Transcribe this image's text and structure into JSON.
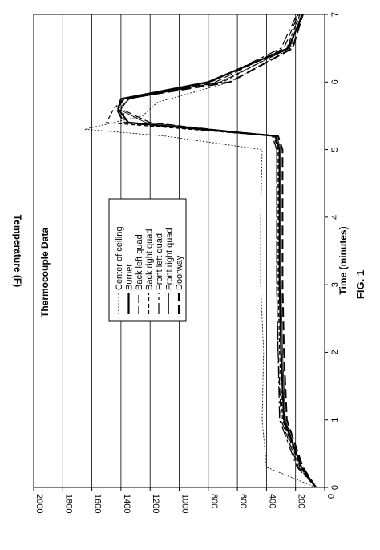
{
  "chart_data": {
    "type": "line",
    "title": "Thermocouple Data",
    "xlabel": "Time (minutes)",
    "ylabel": "Temperature (F)",
    "figure_label": "FIG. 1",
    "xlim": [
      0,
      7
    ],
    "ylim": [
      0,
      2000
    ],
    "x_ticks": [
      "0",
      "1",
      "2",
      "3",
      "4",
      "5",
      "6",
      "7"
    ],
    "y_ticks": [
      "0",
      "200",
      "400",
      "600",
      "800",
      "1000",
      "1200",
      "1400",
      "1600",
      "1800",
      "2000"
    ],
    "grid": true,
    "orientation": "rotated-90-ccw",
    "legend_placement": "center",
    "series": [
      {
        "name": "Center of ceiling",
        "dash": "2,2",
        "width": 0.8,
        "x": [
          0,
          0.3,
          1,
          2,
          3,
          4,
          5.0,
          5.2,
          5.3,
          5.5,
          5.7,
          6,
          6.5,
          7
        ],
        "y": [
          60,
          400,
          430,
          420,
          440,
          440,
          430,
          1100,
          1650,
          1250,
          1150,
          650,
          230,
          170
        ]
      },
      {
        "name": "Burner",
        "dash": "",
        "width": 2.2,
        "x": [
          0,
          0.3,
          1,
          2,
          3,
          4,
          5.0,
          5.2,
          5.4,
          5.6,
          5.75,
          6,
          6.5,
          7
        ],
        "y": [
          60,
          160,
          280,
          300,
          310,
          310,
          310,
          340,
          1350,
          1420,
          1400,
          800,
          250,
          150
        ]
      },
      {
        "name": "Back left quad",
        "dash": "10,4",
        "width": 1.2,
        "x": [
          0,
          0.3,
          1,
          2,
          3,
          4,
          5.0,
          5.2,
          5.4,
          5.6,
          5.75,
          6,
          6.5,
          7
        ],
        "y": [
          60,
          180,
          300,
          320,
          330,
          330,
          330,
          360,
          1200,
          1400,
          1350,
          750,
          280,
          180
        ]
      },
      {
        "name": "Back right quad",
        "dash": "5,3",
        "width": 1.2,
        "x": [
          0,
          0.3,
          1,
          2,
          3,
          4,
          5.0,
          5.2,
          5.4,
          5.6,
          5.75,
          6,
          6.5,
          7
        ],
        "y": [
          60,
          170,
          290,
          310,
          320,
          320,
          320,
          350,
          1500,
          1450,
          1380,
          700,
          260,
          170
        ]
      },
      {
        "name": "Front left quad",
        "dash": "14,4,3,4",
        "width": 1.2,
        "x": [
          0,
          0.3,
          1,
          2,
          3,
          4,
          5.0,
          5.2,
          5.4,
          5.6,
          5.75,
          6,
          6.5,
          7
        ],
        "y": [
          60,
          190,
          310,
          320,
          330,
          330,
          330,
          360,
          1350,
          1400,
          1350,
          780,
          300,
          190
        ]
      },
      {
        "name": "Front right quad",
        "dash": "",
        "width": 0.8,
        "x": [
          0,
          0.3,
          1,
          2,
          3,
          4,
          5.0,
          5.2,
          5.4,
          5.6,
          5.75,
          6,
          6.5,
          7
        ],
        "y": [
          60,
          160,
          270,
          290,
          300,
          300,
          300,
          330,
          1230,
          1420,
          1340,
          720,
          240,
          160
        ]
      },
      {
        "name": "Doorway",
        "dash": "12,5",
        "width": 2,
        "x": [
          0,
          0.3,
          1,
          2,
          3,
          4,
          5.0,
          5.2,
          5.4,
          5.6,
          5.75,
          6,
          6.5,
          7
        ],
        "y": [
          60,
          150,
          260,
          280,
          290,
          290,
          290,
          320,
          1380,
          1430,
          1380,
          650,
          220,
          150
        ]
      }
    ]
  }
}
